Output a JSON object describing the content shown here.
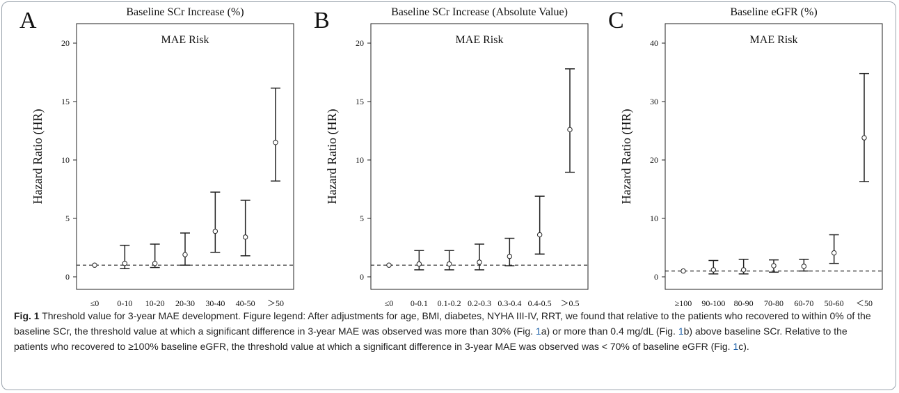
{
  "chart_data": [
    {
      "type": "errorbar",
      "letter": "A",
      "title": "Baseline SCr Increase (%)",
      "subtitle": "MAE  Risk",
      "ylabel": "Hazard Ratio (HR)",
      "xlabel": "",
      "ylim": [
        0,
        20
      ],
      "yticks": [
        0,
        5,
        10,
        15,
        20
      ],
      "reference_line": 1,
      "categories": [
        "≤0",
        "0-10",
        "10-20",
        "20-30",
        "30-40",
        "40-50",
        "＞50"
      ],
      "hr": [
        1.0,
        1.15,
        1.15,
        1.9,
        3.9,
        3.4,
        11.5
      ],
      "lower": [
        1.0,
        0.7,
        0.8,
        1.0,
        2.1,
        1.8,
        8.2
      ],
      "upper": [
        1.0,
        2.7,
        2.8,
        3.75,
        7.25,
        6.55,
        16.15
      ]
    },
    {
      "type": "errorbar",
      "letter": "B",
      "title": "Baseline SCr Increase (Absolute Value)",
      "subtitle": "MAE  Risk",
      "ylabel": "Hazard Ratio (HR)",
      "xlabel": "",
      "ylim": [
        0,
        20
      ],
      "yticks": [
        0,
        5,
        10,
        15,
        20
      ],
      "reference_line": 1,
      "categories": [
        "≤0",
        "0-0.1",
        "0.1-0.2",
        "0.2-0.3",
        "0.3-0.4",
        "0.4-0.5",
        "＞0.5"
      ],
      "hr": [
        1.0,
        1.1,
        1.1,
        1.25,
        1.75,
        3.6,
        12.6
      ],
      "lower": [
        1.0,
        0.6,
        0.6,
        0.6,
        0.95,
        1.95,
        8.95
      ],
      "upper": [
        1.0,
        2.25,
        2.25,
        2.8,
        3.3,
        6.9,
        17.8
      ]
    },
    {
      "type": "errorbar",
      "letter": "C",
      "title": "Baseline eGFR (%)",
      "subtitle": "MAE  Risk",
      "ylabel": "Hazard Ratio (HR)",
      "xlabel": "",
      "ylim": [
        0,
        40
      ],
      "yticks": [
        0,
        10,
        20,
        30,
        40
      ],
      "reference_line": 1,
      "categories": [
        "≥100",
        "90-100",
        "80-90",
        "70-80",
        "60-70",
        "50-60",
        "＜50"
      ],
      "hr": [
        1.0,
        1.2,
        1.2,
        1.9,
        1.8,
        4.1,
        23.8
      ],
      "lower": [
        1.0,
        0.5,
        0.5,
        0.8,
        1.0,
        2.3,
        16.3
      ],
      "upper": [
        1.0,
        2.8,
        3.0,
        2.9,
        3.0,
        7.2,
        34.8
      ]
    }
  ],
  "caption": {
    "fig_label": "Fig. 1",
    "title": " Threshold value for 3-year MAE development. Figure legend: After adjustments for age, BMI, diabetes, NYHA III-IV, RRT, we found that relative to the patients who recovered to within 0% of the baseline SCr, the threshold value at which a significant difference in 3-year MAE was observed was more than 30% (Fig. ",
    "ref_1": "1",
    "part_2": "a) or more than 0.4 mg/dL (Fig. ",
    "ref_2": "1",
    "part_3": "b) above baseline SCr. Relative to the patients who recovered to ≥100% baseline eGFR, the threshold value at which a significant difference in 3-year MAE was observed was < 70% of baseline eGFR (Fig. ",
    "ref_3": "1",
    "part_4": "c)."
  }
}
